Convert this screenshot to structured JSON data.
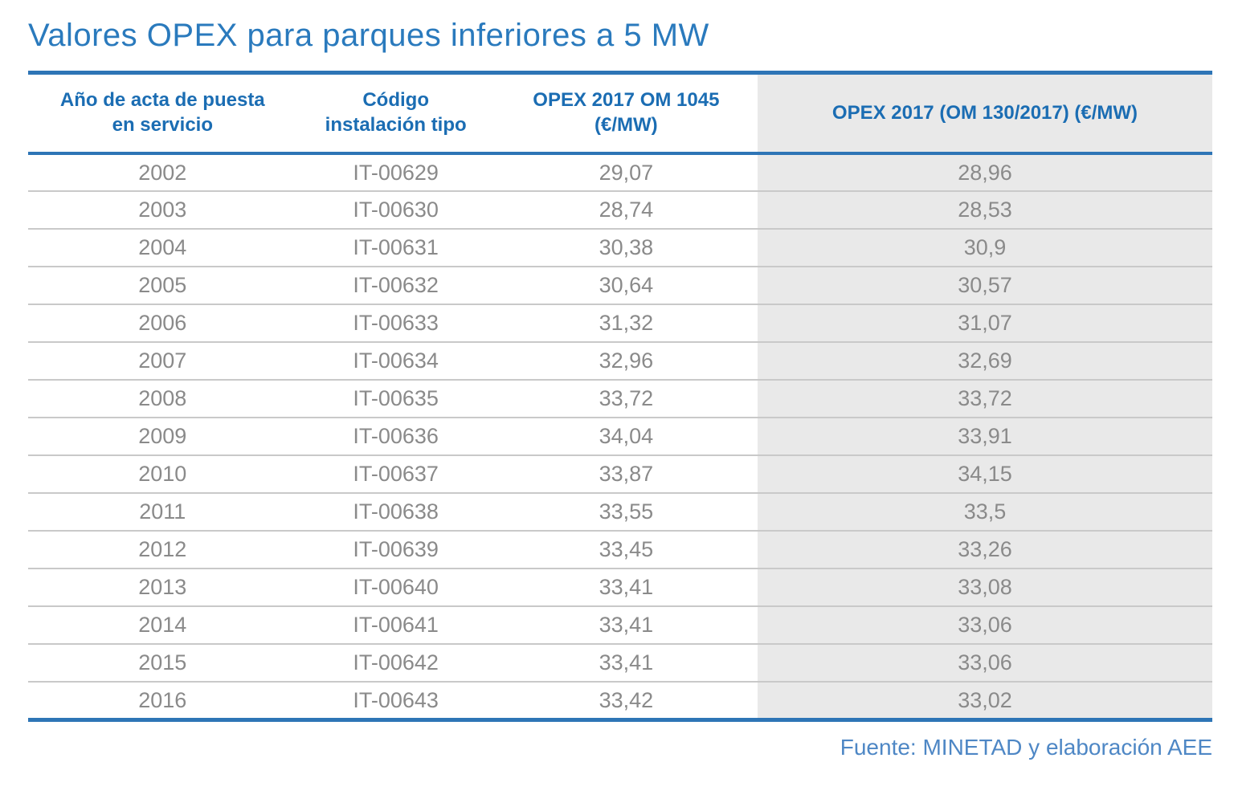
{
  "chart_data": {
    "type": "table",
    "title": "Valores OPEX para parques inferiores a 5 MW",
    "source": "Fuente: MINETAD y elaboración AEE",
    "columns": [
      "Año de acta de puesta en servicio",
      "Código instalación tipo",
      "OPEX 2017 OM 1045 (€/MW)",
      "OPEX 2017 (OM 130/2017) (€/MW)"
    ],
    "rows": [
      [
        "2002",
        "IT-00629",
        "29,07",
        "28,96"
      ],
      [
        "2003",
        "IT-00630",
        "28,74",
        "28,53"
      ],
      [
        "2004",
        "IT-00631",
        "30,38",
        "30,9"
      ],
      [
        "2005",
        "IT-00632",
        "30,64",
        "30,57"
      ],
      [
        "2006",
        "IT-00633",
        "31,32",
        "31,07"
      ],
      [
        "2007",
        "IT-00634",
        "32,96",
        "32,69"
      ],
      [
        "2008",
        "IT-00635",
        "33,72",
        "33,72"
      ],
      [
        "2009",
        "IT-00636",
        "34,04",
        "33,91"
      ],
      [
        "2010",
        "IT-00637",
        "33,87",
        "34,15"
      ],
      [
        "2011",
        "IT-00638",
        "33,55",
        "33,5"
      ],
      [
        "2012",
        "IT-00639",
        "33,45",
        "33,26"
      ],
      [
        "2013",
        "IT-00640",
        "33,41",
        "33,08"
      ],
      [
        "2014",
        "IT-00641",
        "33,41",
        "33,06"
      ],
      [
        "2015",
        "IT-00642",
        "33,41",
        "33,06"
      ],
      [
        "2016",
        "IT-00643",
        "33,42",
        "33,02"
      ]
    ]
  },
  "header_display": {
    "col1": "Año de acta de puesta\nen servicio",
    "col2": "Código\ninstalación tipo",
    "col3": "OPEX 2017 OM 1045\n(€/MW)",
    "col4": "OPEX 2017 (OM 130/2017) (€/MW)"
  },
  "colors": {
    "accent_blue": "#2e75b6",
    "title_blue": "#2a7abd",
    "header_blue": "#1b6db3",
    "body_gray": "#8a8a8a",
    "shaded_column_bg": "#e9e9e9",
    "row_divider": "#c9c9c9",
    "source_blue": "#4e87c5"
  }
}
